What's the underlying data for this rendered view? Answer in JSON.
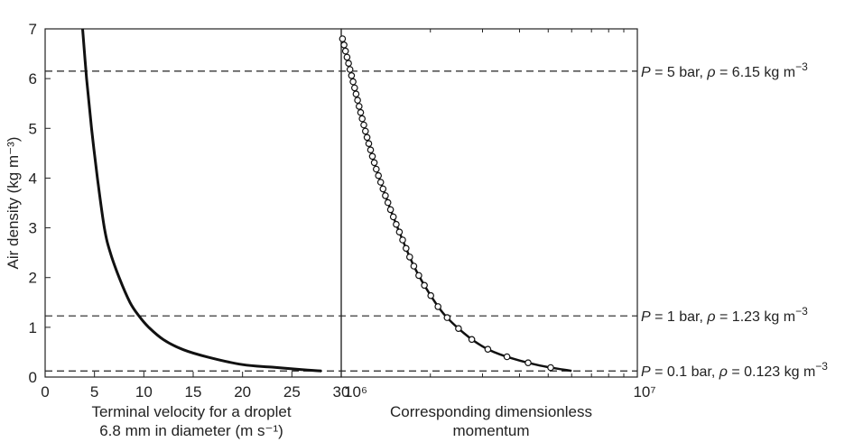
{
  "chart_data": [
    {
      "type": "line",
      "panel": "left",
      "ylabel": "Air density (kg m⁻³)",
      "xlabel_lines": [
        "Terminal velocity for a droplet",
        "6.8 mm in diameter (m s⁻¹)"
      ],
      "xlim": [
        0,
        30
      ],
      "ylim": [
        0,
        7
      ],
      "x_ticks": [
        0,
        5,
        10,
        15,
        20,
        25,
        30
      ],
      "y_ticks": [
        0,
        1,
        2,
        3,
        4,
        5,
        6,
        7
      ],
      "grid": false,
      "series": [
        {
          "points": [
            {
              "x": 3.8,
              "y": 7.0
            },
            {
              "x": 4.2,
              "y": 6.0
            },
            {
              "x": 4.7,
              "y": 5.0
            },
            {
              "x": 5.3,
              "y": 4.0
            },
            {
              "x": 6.0,
              "y": 3.0
            },
            {
              "x": 6.6,
              "y": 2.5
            },
            {
              "x": 7.5,
              "y": 2.0
            },
            {
              "x": 8.6,
              "y": 1.5
            },
            {
              "x": 9.5,
              "y": 1.23
            },
            {
              "x": 10.5,
              "y": 1.0
            },
            {
              "x": 12.0,
              "y": 0.75
            },
            {
              "x": 14.0,
              "y": 0.55
            },
            {
              "x": 16.5,
              "y": 0.4
            },
            {
              "x": 20.0,
              "y": 0.25
            },
            {
              "x": 23.0,
              "y": 0.2
            },
            {
              "x": 26.0,
              "y": 0.15
            },
            {
              "x": 28.0,
              "y": 0.123
            }
          ]
        }
      ],
      "reference_lines_y": [
        6.15,
        1.23,
        0.123
      ]
    },
    {
      "type": "line",
      "panel": "right",
      "xlabel_lines": [
        "Corresponding dimensionless",
        "momentum"
      ],
      "x_scale": "log",
      "xlim": [
        1000000,
        10000000
      ],
      "x_tick_labels": [
        "10⁶",
        "10⁷"
      ],
      "ylim": [
        0,
        7
      ],
      "grid": false,
      "marker": "circle",
      "series": [
        {
          "points": [
            {
              "x": 1010000,
              "y": 6.8
            },
            {
              "x": 1100000,
              "y": 5.9
            },
            {
              "x": 1200000,
              "y": 5.0
            },
            {
              "x": 1310000,
              "y": 4.2
            },
            {
              "x": 1450000,
              "y": 3.45
            },
            {
              "x": 1600000,
              "y": 2.8
            },
            {
              "x": 1770000,
              "y": 2.2
            },
            {
              "x": 2000000,
              "y": 1.65
            },
            {
              "x": 2250000,
              "y": 1.23
            },
            {
              "x": 2700000,
              "y": 0.8
            },
            {
              "x": 3150000,
              "y": 0.55
            },
            {
              "x": 3800000,
              "y": 0.37
            },
            {
              "x": 4700000,
              "y": 0.23
            },
            {
              "x": 6000000,
              "y": 0.123
            }
          ]
        }
      ],
      "reference_lines_y": [
        6.15,
        1.23,
        0.123
      ]
    }
  ],
  "annotations": [
    {
      "y": 6.15,
      "p_part": "P = 5 bar, ",
      "rho_symbol": "ρ",
      "rho_part": " = 6.15 kg m",
      "exponent": "−3"
    },
    {
      "y": 1.23,
      "p_part": "P = 1 bar, ",
      "rho_symbol": "ρ",
      "rho_part": " = 1.23 kg m",
      "exponent": "−3"
    },
    {
      "y": 0.123,
      "p_part": "P = 0.1 bar, ",
      "rho_symbol": "ρ",
      "rho_part": " = 0.123 kg m",
      "exponent": "−3"
    }
  ]
}
